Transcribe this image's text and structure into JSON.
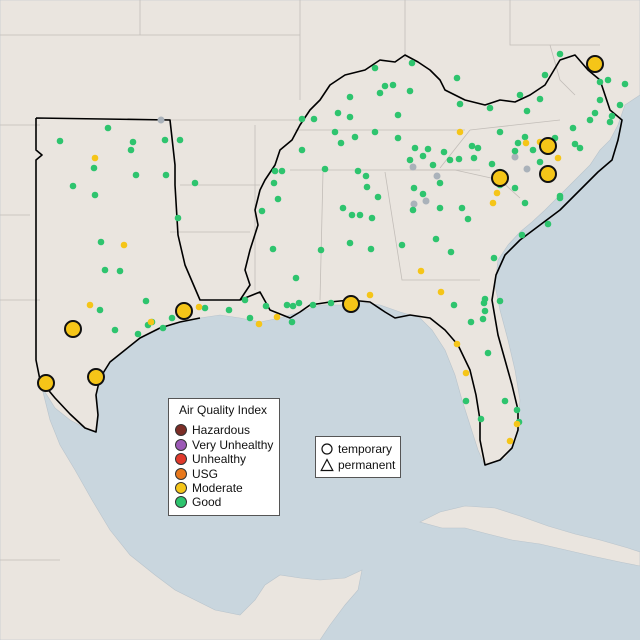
{
  "colors": {
    "water": "#c9d6de",
    "land": "#eae5df",
    "border": "#000000",
    "state_line": "#b8b4b0",
    "good": "#2ec46e",
    "moderate": "#f5c518",
    "usg": "#e8781c",
    "unhealthy": "#e0392b",
    "very_unhealthy": "#9c59b6",
    "hazardous": "#7b2d26",
    "no_data": "#aab2ba"
  },
  "aqi_legend": {
    "title": "Air Quality Index",
    "items": [
      {
        "label": "Hazardous",
        "color": "#7b2d26"
      },
      {
        "label": "Very Unhealthy",
        "color": "#9c59b6"
      },
      {
        "label": "Unhealthy",
        "color": "#e0392b"
      },
      {
        "label": "USG",
        "color": "#e8781c"
      },
      {
        "label": "Moderate",
        "color": "#f5c518"
      },
      {
        "label": "Good",
        "color": "#2ec46e"
      }
    ]
  },
  "shape_legend": {
    "items": [
      {
        "label": "temporary",
        "shape": "circle"
      },
      {
        "label": "permanent",
        "shape": "triangle"
      }
    ]
  }
}
